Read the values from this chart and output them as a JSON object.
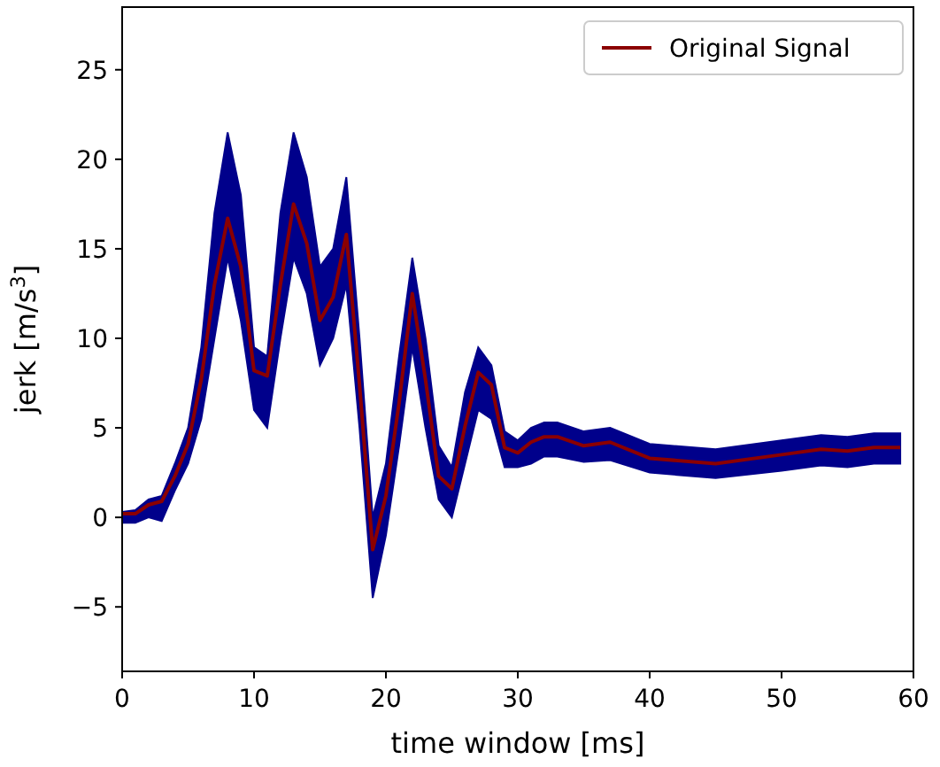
{
  "chart_data": {
    "type": "line",
    "xlabel": "time window [ms]",
    "ylabel": "jerk [m/s$^{3}$]",
    "x": [
      0,
      1,
      2,
      3,
      4,
      5,
      6,
      7,
      8,
      9,
      10,
      11,
      12,
      13,
      14,
      15,
      16,
      17,
      18,
      19,
      20,
      21,
      22,
      23,
      24,
      25,
      26,
      27,
      28,
      29,
      30,
      31,
      32,
      33,
      35,
      37,
      40,
      45,
      50,
      53,
      55,
      57,
      59
    ],
    "series": [
      {
        "name": "Original Signal",
        "color": "#8b0000",
        "values": [
          0.2,
          0.2,
          0.7,
          0.9,
          2.3,
          4.1,
          7.7,
          13,
          16.7,
          14,
          8.2,
          7.9,
          13,
          17.5,
          15.3,
          11,
          12.3,
          15.8,
          7.4,
          -1.8,
          1.2,
          6.4,
          12.5,
          7.7,
          2.3,
          1.6,
          5.1,
          8.1,
          7.4,
          3.9,
          3.6,
          4.2,
          4.5,
          4.5,
          4,
          4.2,
          3.3,
          3,
          3.5,
          3.8,
          3.7,
          3.9,
          3.9
        ],
        "lower": [
          -0.3,
          -0.3,
          0,
          -0.2,
          1.5,
          3,
          5.5,
          10,
          14.5,
          11,
          6,
          5,
          10,
          14.5,
          12.5,
          8.5,
          10,
          13,
          5,
          -4.5,
          -1,
          4,
          9.5,
          5,
          1,
          0,
          3,
          6,
          5.5,
          2.8,
          2.8,
          3,
          3.4,
          3.4,
          3.1,
          3.2,
          2.5,
          2.2,
          2.6,
          2.9,
          2.8,
          3,
          3
        ],
        "upper": [
          0.3,
          0.4,
          1,
          1.2,
          3,
          5,
          9.5,
          17,
          21.5,
          18,
          9.5,
          9,
          17,
          21.5,
          19,
          14,
          15,
          19,
          10,
          0,
          3,
          9,
          14.5,
          10,
          4,
          2.8,
          7,
          9.5,
          8.5,
          4.8,
          4.3,
          5,
          5.3,
          5.3,
          4.8,
          5,
          4.1,
          3.8,
          4.3,
          4.6,
          4.5,
          4.7,
          4.7
        ]
      }
    ],
    "xlim": [
      0,
      60
    ],
    "ylim": [
      -8.6,
      28.5
    ],
    "xticks": [
      0,
      10,
      20,
      30,
      40,
      50,
      60
    ],
    "yticks": [
      {
        "value": -5,
        "label": "−5"
      },
      0,
      5,
      10,
      15,
      20,
      25
    ],
    "legend": "top right",
    "grid": false
  }
}
